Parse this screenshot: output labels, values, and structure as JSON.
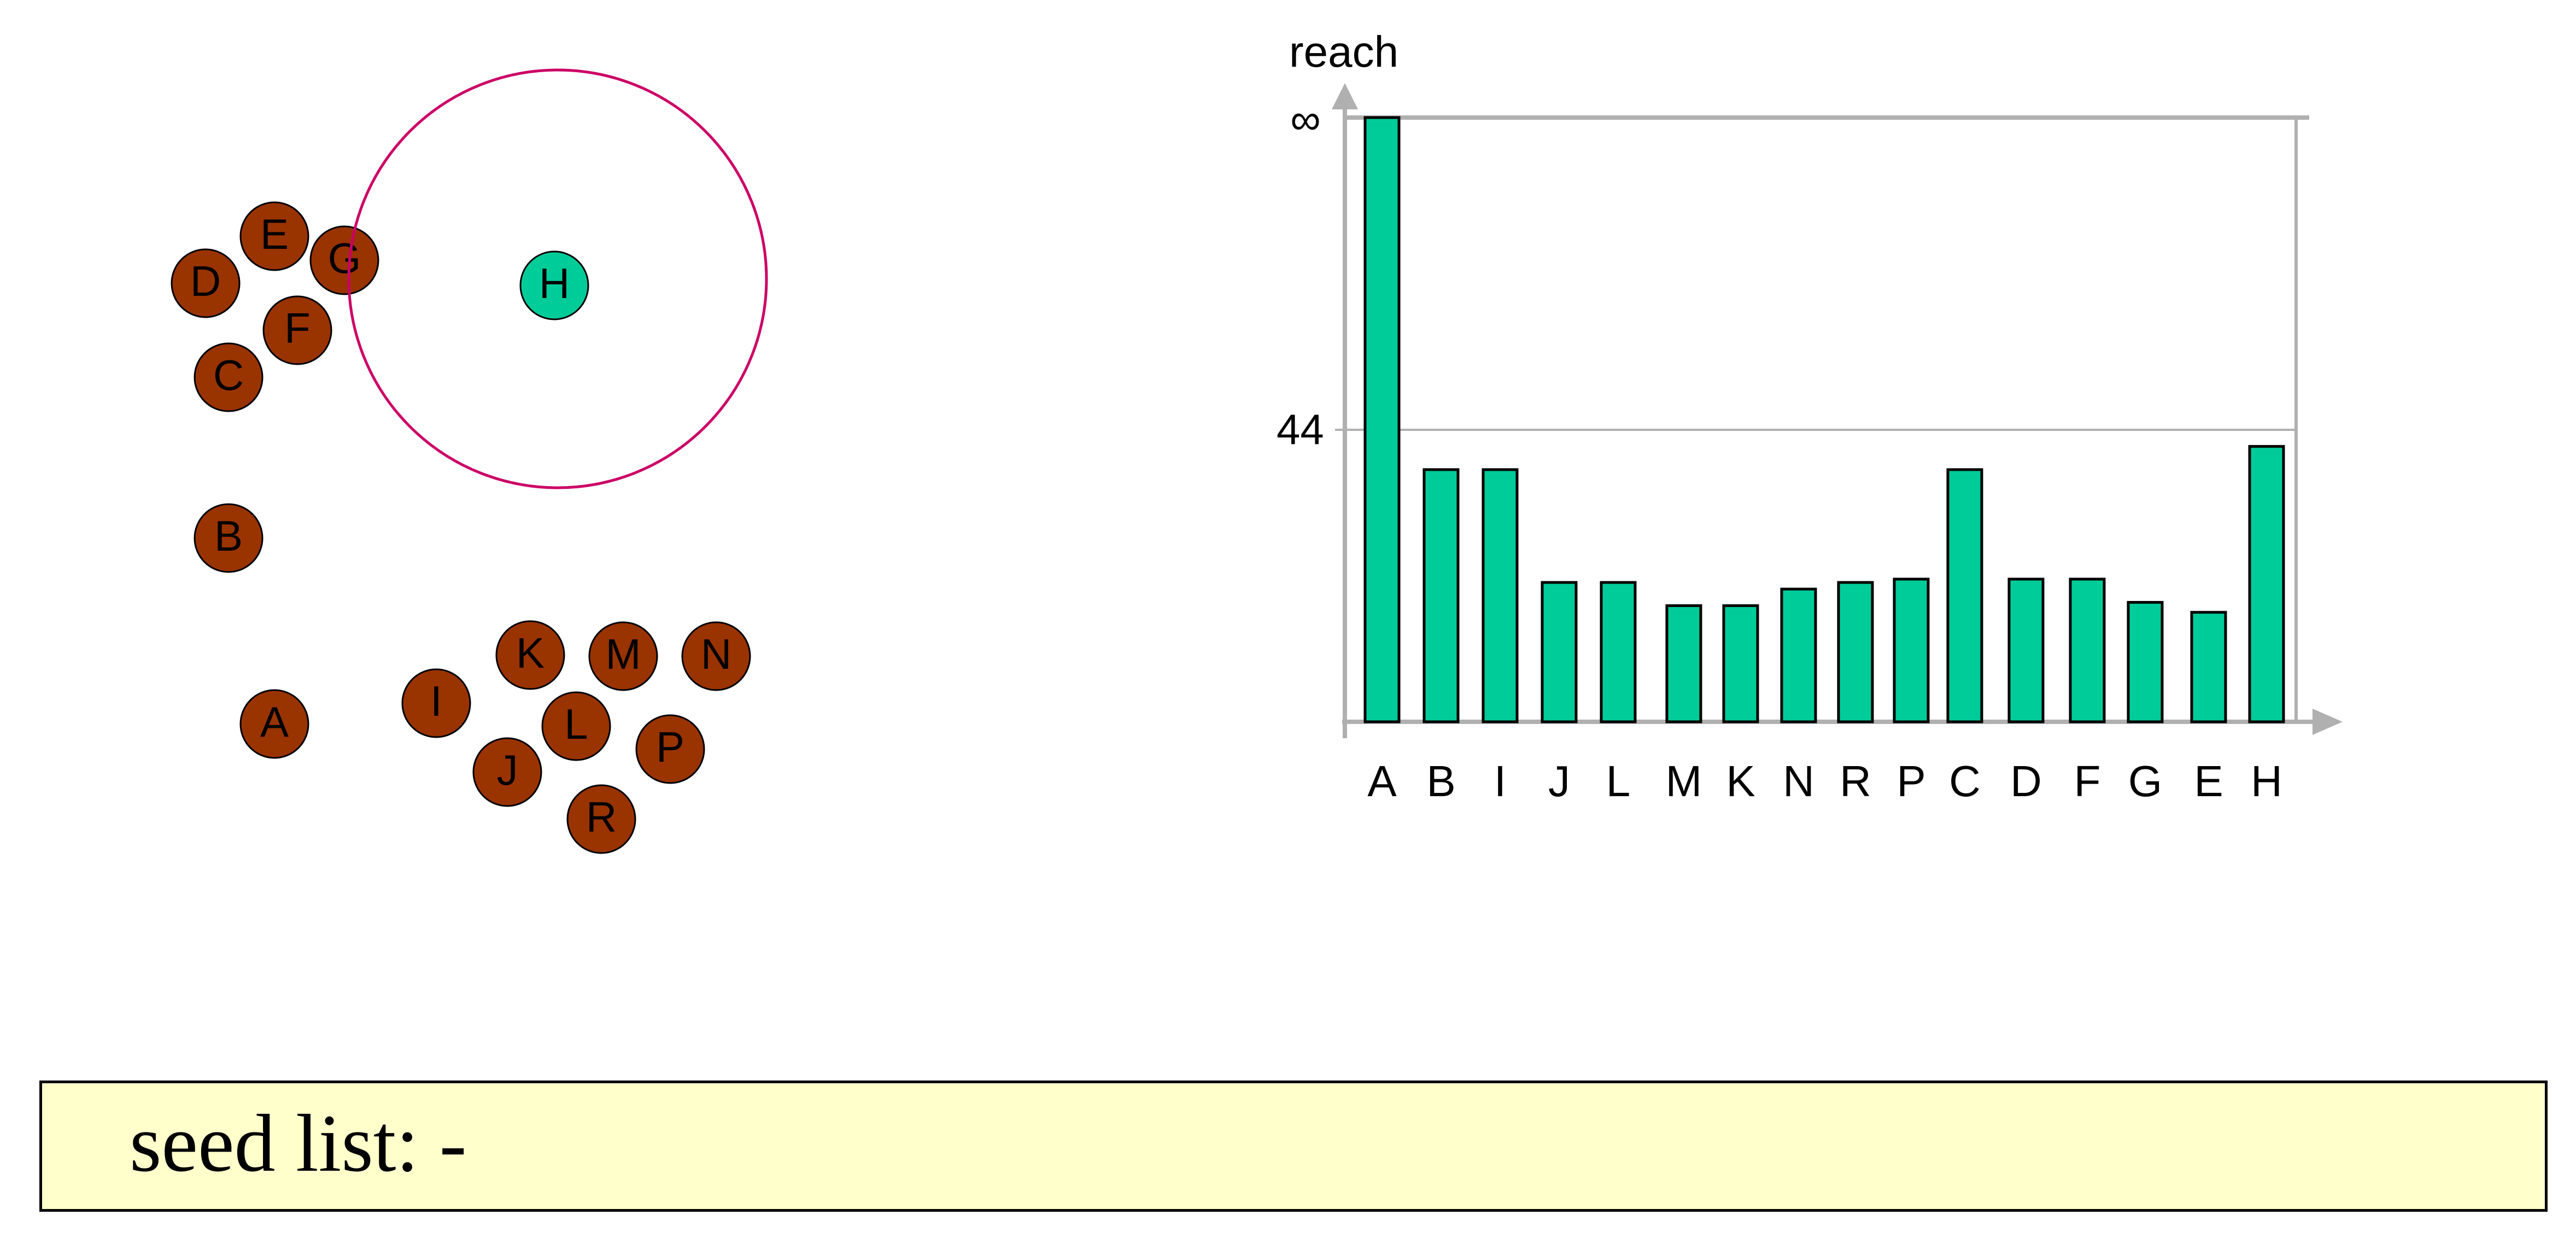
{
  "colors": {
    "point_fill": "#993300",
    "current_point_fill": "#00cc99",
    "bar_fill": "#00cc99",
    "eps_circle": "#cc0066",
    "axis": "#b0b0b0",
    "seed_box_bg": "#ffffcc"
  },
  "points": [
    {
      "label": "E"
    },
    {
      "label": "G"
    },
    {
      "label": "D"
    },
    {
      "label": "F"
    },
    {
      "label": "C"
    },
    {
      "label": "H",
      "current": true
    },
    {
      "label": "B"
    },
    {
      "label": "A"
    },
    {
      "label": "I"
    },
    {
      "label": "K"
    },
    {
      "label": "M"
    },
    {
      "label": "N"
    },
    {
      "label": "L"
    },
    {
      "label": "J"
    },
    {
      "label": "P"
    },
    {
      "label": "R"
    }
  ],
  "chart_data": {
    "type": "bar",
    "ylabel": "reach",
    "y_ticks": [
      "44",
      "∞"
    ],
    "categories": [
      "A",
      "B",
      "I",
      "J",
      "L",
      "M",
      "K",
      "N",
      "R",
      "P",
      "C",
      "D",
      "F",
      "G",
      "E",
      "H"
    ],
    "values": [
      "∞",
      38,
      38,
      21,
      21,
      17.5,
      17.5,
      20,
      21,
      21.5,
      38,
      21.5,
      21.5,
      18,
      16.5,
      41.5
    ],
    "grid": true
  },
  "seed_list": {
    "text": "seed list: -"
  }
}
